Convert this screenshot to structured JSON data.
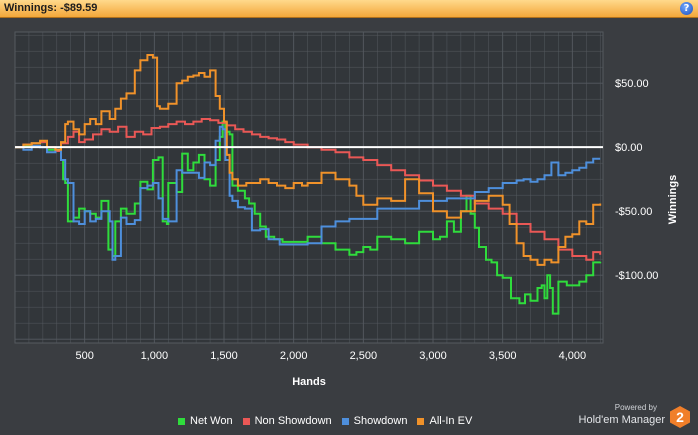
{
  "header": {
    "title": "Winnings: -$89.59",
    "help_icon": "help-icon",
    "help_glyph": "?"
  },
  "colors": {
    "background": "#3a3d41",
    "plot_background": "#32363a",
    "grid": "#555a60",
    "zero_line": "#ffffff",
    "title_bar": "#f3a73a"
  },
  "brand": {
    "powered_by": "Powered by",
    "product": "Hold'em Manager",
    "logo_glyph": "2",
    "logo_color": "#f07f2a"
  },
  "chart_data": {
    "type": "line",
    "title": "",
    "xlabel": "Hands",
    "ylabel": "Winnings",
    "xlim": [
      0,
      4220
    ],
    "ylim": [
      -153,
      90
    ],
    "x_ticks": [
      500,
      1000,
      1500,
      2000,
      2500,
      3000,
      3500,
      4000
    ],
    "x_tick_labels": [
      "500",
      "1,000",
      "1,500",
      "2,000",
      "2,500",
      "3,000",
      "3,500",
      "4,000"
    ],
    "y_ticks": [
      50,
      0,
      -50,
      -100
    ],
    "y_tick_labels": [
      "$50.00",
      "$0.00",
      "-$50.00",
      "-$100.00"
    ],
    "grid": true,
    "zero_line": true,
    "legend_position": "bottom",
    "series": [
      {
        "name": "Net Won",
        "color": "#2fdc3c",
        "x": [
          0,
          60,
          120,
          180,
          230,
          290,
          330,
          345,
          360,
          380,
          420,
          460,
          500,
          540,
          580,
          620,
          670,
          700,
          720,
          760,
          800,
          860,
          900,
          950,
          990,
          1030,
          1060,
          1090,
          1100,
          1160,
          1200,
          1240,
          1280,
          1320,
          1360,
          1400,
          1440,
          1470,
          1490,
          1510,
          1540,
          1560,
          1600,
          1650,
          1680,
          1720,
          1760,
          1800,
          1860,
          1920,
          2000,
          2100,
          2200,
          2300,
          2400,
          2450,
          2500,
          2550,
          2600,
          2700,
          2800,
          2900,
          3000,
          3050,
          3100,
          3150,
          3200,
          3240,
          3270,
          3300,
          3330,
          3380,
          3420,
          3460,
          3500,
          3560,
          3620,
          3660,
          3700,
          3750,
          3780,
          3800,
          3820,
          3840,
          3860,
          3900,
          3960,
          4000,
          4050,
          4100,
          4150,
          4200
        ],
        "values": [
          0,
          1,
          3,
          4,
          -2,
          -2,
          -10,
          -25,
          -28,
          -58,
          -55,
          -48,
          -50,
          -52,
          -55,
          -42,
          -80,
          -85,
          -58,
          -48,
          -52,
          -44,
          -27,
          -33,
          -10,
          -8,
          -58,
          -60,
          -28,
          -35,
          -5,
          -18,
          -12,
          -6,
          -25,
          -30,
          -10,
          8,
          20,
          12,
          10,
          -30,
          -34,
          -40,
          -44,
          -52,
          -62,
          -70,
          -72,
          -74,
          -74,
          -70,
          -75,
          -80,
          -84,
          -82,
          -78,
          -80,
          -70,
          -72,
          -75,
          -66,
          -72,
          -70,
          -58,
          -66,
          -50,
          -38,
          -52,
          -63,
          -78,
          -88,
          -90,
          -100,
          -102,
          -118,
          -122,
          -115,
          -120,
          -110,
          -108,
          -118,
          -100,
          -110,
          -130,
          -105,
          -108,
          -108,
          -105,
          -100,
          -90,
          -89.59
        ]
      },
      {
        "name": "Non Showdown",
        "color": "#ea5856",
        "x": [
          0,
          60,
          120,
          180,
          230,
          290,
          330,
          380,
          420,
          460,
          500,
          560,
          620,
          680,
          740,
          800,
          860,
          920,
          980,
          1040,
          1100,
          1160,
          1220,
          1280,
          1340,
          1400,
          1460,
          1520,
          1580,
          1640,
          1700,
          1760,
          1820,
          1880,
          1940,
          2000,
          2100,
          2200,
          2300,
          2400,
          2500,
          2600,
          2700,
          2800,
          2900,
          3000,
          3100,
          3200,
          3300,
          3400,
          3500,
          3600,
          3700,
          3800,
          3900,
          4000,
          4100,
          4150,
          4200
        ],
        "values": [
          0,
          2,
          3,
          4,
          0,
          -3,
          3,
          8,
          12,
          4,
          6,
          10,
          14,
          12,
          16,
          8,
          12,
          10,
          15,
          16,
          18,
          20,
          18,
          20,
          22,
          21,
          19,
          17,
          14,
          12,
          10,
          8,
          7,
          6,
          4,
          2,
          0,
          -2,
          -4,
          -8,
          -10,
          -14,
          -18,
          -22,
          -26,
          -30,
          -34,
          -38,
          -44,
          -48,
          -52,
          -60,
          -66,
          -72,
          -80,
          -85,
          -88,
          -82,
          -84
        ]
      },
      {
        "name": "Showdown",
        "color": "#4e8fdc",
        "x": [
          0,
          60,
          120,
          180,
          230,
          290,
          330,
          360,
          380,
          420,
          460,
          500,
          540,
          580,
          620,
          680,
          700,
          720,
          760,
          800,
          860,
          900,
          950,
          990,
          1030,
          1060,
          1100,
          1160,
          1200,
          1240,
          1280,
          1320,
          1360,
          1400,
          1440,
          1470,
          1490,
          1510,
          1540,
          1560,
          1600,
          1650,
          1700,
          1760,
          1820,
          1900,
          2000,
          2100,
          2200,
          2300,
          2400,
          2500,
          2600,
          2700,
          2800,
          2900,
          3000,
          3100,
          3200,
          3300,
          3400,
          3500,
          3550,
          3600,
          3650,
          3700,
          3750,
          3800,
          3850,
          3900,
          3950,
          4000,
          4050,
          4100,
          4150,
          4200
        ],
        "values": [
          0,
          -2,
          1,
          0,
          -4,
          -2,
          -10,
          -25,
          -28,
          -58,
          -60,
          -50,
          -58,
          -56,
          -50,
          -58,
          -88,
          -85,
          -55,
          -60,
          -57,
          -32,
          -30,
          -28,
          -40,
          -56,
          -58,
          -18,
          -20,
          -20,
          -20,
          -24,
          -12,
          -14,
          5,
          16,
          14,
          -10,
          -38,
          -42,
          -47,
          -48,
          -65,
          -64,
          -72,
          -76,
          -76,
          -75,
          -62,
          -58,
          -56,
          -56,
          -48,
          -48,
          -48,
          -42,
          -42,
          -40,
          -40,
          -35,
          -32,
          -28,
          -28,
          -26,
          -25,
          -27,
          -25,
          -22,
          -12,
          -22,
          -20,
          -18,
          -16,
          -12,
          -9,
          -9
        ]
      },
      {
        "name": "All-In EV",
        "color": "#f0922a",
        "x": [
          0,
          60,
          120,
          180,
          230,
          290,
          330,
          360,
          380,
          420,
          460,
          500,
          540,
          580,
          620,
          680,
          720,
          760,
          800,
          860,
          900,
          950,
          990,
          1020,
          1040,
          1060,
          1100,
          1160,
          1200,
          1240,
          1280,
          1320,
          1360,
          1400,
          1440,
          1470,
          1500,
          1520,
          1540,
          1560,
          1600,
          1660,
          1700,
          1760,
          1820,
          1880,
          1940,
          2000,
          2060,
          2100,
          2200,
          2300,
          2400,
          2450,
          2500,
          2600,
          2700,
          2800,
          2900,
          3000,
          3100,
          3200,
          3300,
          3400,
          3500,
          3550,
          3600,
          3650,
          3700,
          3750,
          3800,
          3850,
          3900,
          3950,
          4000,
          4050,
          4100,
          4150,
          4200
        ],
        "values": [
          0,
          2,
          3,
          5,
          0,
          -2,
          4,
          18,
          20,
          14,
          10,
          18,
          22,
          18,
          28,
          22,
          30,
          38,
          42,
          60,
          68,
          72,
          70,
          32,
          30,
          30,
          34,
          50,
          52,
          55,
          56,
          58,
          55,
          60,
          40,
          30,
          20,
          -6,
          -20,
          -25,
          -30,
          -28,
          -28,
          -25,
          -28,
          -30,
          -32,
          -28,
          -30,
          -28,
          -20,
          -25,
          -30,
          -38,
          -45,
          -40,
          -42,
          -25,
          -36,
          -50,
          -55,
          -50,
          -42,
          -38,
          -45,
          -60,
          -75,
          -85,
          -88,
          -92,
          -88,
          -90,
          -78,
          -70,
          -68,
          -58,
          -60,
          -45,
          -44
        ]
      }
    ]
  }
}
